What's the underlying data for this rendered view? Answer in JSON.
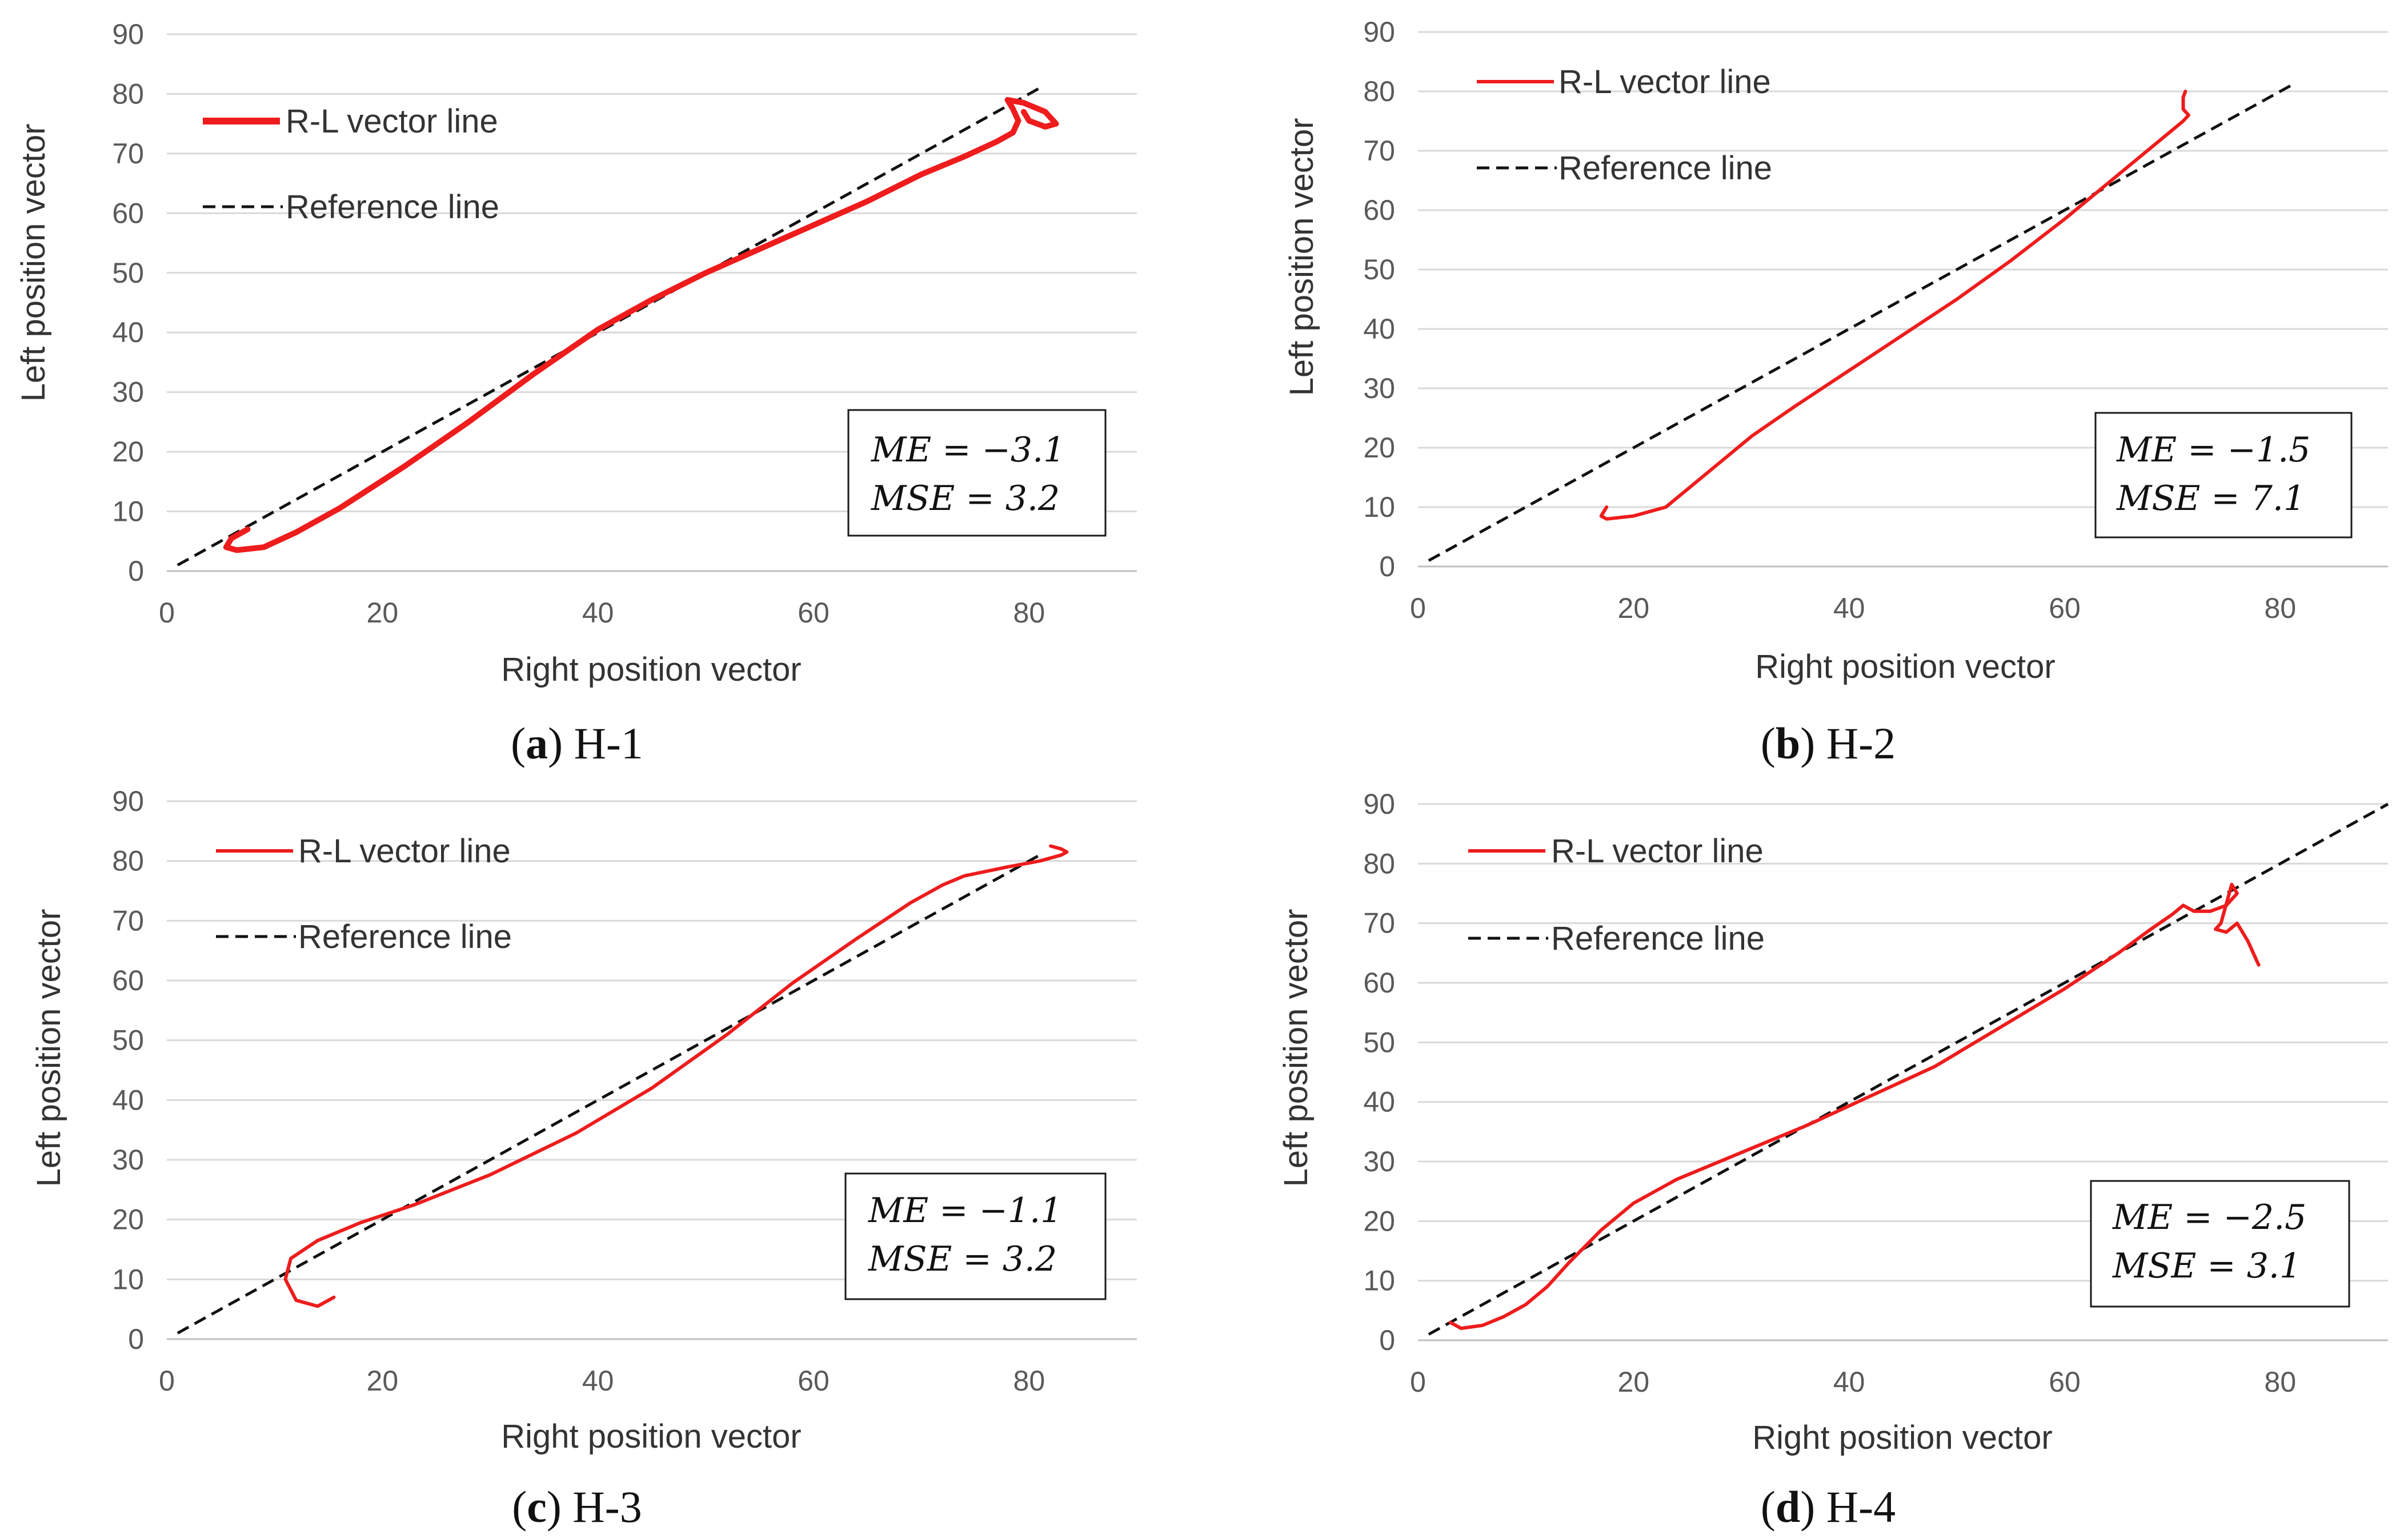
{
  "colors": {
    "curve": "#ee1c1c",
    "reference": "#111111",
    "grid": "#d9d9d9",
    "axis": "#bfbfbf"
  },
  "chart_data": [
    {
      "id": "H-1",
      "type": "line",
      "caption": {
        "letter": "a",
        "name": "H-1"
      },
      "xlabel": "Right position vector",
      "ylabel": "Left position vector",
      "xlim": [
        0,
        90
      ],
      "ylim": [
        0,
        90
      ],
      "xticks": [
        0,
        20,
        40,
        60,
        80
      ],
      "yticks": [
        0,
        10,
        20,
        30,
        40,
        50,
        60,
        70,
        80,
        90
      ],
      "legend": {
        "position": "top-left",
        "entries": [
          "R-L vector line",
          "Reference line"
        ]
      },
      "stats": {
        "me": "ME = −3.1",
        "mse": "MSE = 3.2"
      },
      "reference": {
        "x": [
          1,
          81
        ],
        "y": [
          1,
          81
        ]
      },
      "series": [
        {
          "name": "R-L vector line",
          "x": [
            7.5,
            6,
            5.5,
            6.5,
            9,
            12,
            16,
            22,
            28,
            34,
            40,
            45,
            50,
            55,
            60,
            65,
            70,
            74,
            77,
            78.5,
            79,
            78.5,
            78,
            79.5,
            81.5,
            82.5,
            81.5,
            80,
            79.5
          ],
          "y": [
            7,
            5.5,
            4,
            3.5,
            4,
            6.5,
            10.5,
            17.5,
            25,
            33,
            40.5,
            45.5,
            50,
            54,
            58,
            62,
            66.5,
            69.5,
            72,
            73.5,
            75.5,
            77.5,
            79,
            78.5,
            77,
            75,
            74.5,
            75.5,
            77
          ]
        }
      ]
    },
    {
      "id": "H-2",
      "type": "line",
      "caption": {
        "letter": "b",
        "name": "H-2"
      },
      "xlabel": "Right position vector",
      "ylabel": "Left position vector",
      "xlim": [
        0,
        90
      ],
      "ylim": [
        0,
        90
      ],
      "xticks": [
        0,
        20,
        40,
        60,
        80
      ],
      "yticks": [
        0,
        10,
        20,
        30,
        40,
        50,
        60,
        70,
        80,
        90
      ],
      "legend": {
        "position": "top-left",
        "entries": [
          "R-L vector line",
          "Reference line"
        ]
      },
      "stats": {
        "me": "ME = −1.5",
        "mse": "MSE = 7.1"
      },
      "reference": {
        "x": [
          1,
          81
        ],
        "y": [
          1,
          81
        ]
      },
      "series": [
        {
          "name": "R-L vector line",
          "x": [
            17.5,
            17,
            17.5,
            20,
            23,
            25,
            28,
            31,
            35,
            40,
            45,
            50,
            55,
            60,
            65,
            69,
            71,
            71.5,
            71,
            71,
            71.2
          ],
          "y": [
            10,
            8.5,
            8,
            8.5,
            10,
            13,
            17.5,
            22,
            27,
            33,
            39,
            45,
            51.5,
            58.5,
            66,
            72,
            75,
            76,
            77,
            79,
            80
          ]
        }
      ]
    },
    {
      "id": "H-3",
      "type": "line",
      "caption": {
        "letter": "c",
        "name": "H-3"
      },
      "xlabel": "Right position vector",
      "ylabel": "Left position vector",
      "xlim": [
        0,
        90
      ],
      "ylim": [
        0,
        90
      ],
      "xticks": [
        0,
        20,
        40,
        60,
        80
      ],
      "yticks": [
        0,
        10,
        20,
        30,
        40,
        50,
        60,
        70,
        80,
        90
      ],
      "legend": {
        "position": "top-left",
        "entries": [
          "R-L vector line",
          "Reference line"
        ]
      },
      "stats": {
        "me": "ME = −1.1",
        "mse": "MSE = 3.2"
      },
      "reference": {
        "x": [
          1,
          81
        ],
        "y": [
          1,
          81
        ]
      },
      "series": [
        {
          "name": "R-L vector line",
          "x": [
            15.5,
            14,
            12,
            11,
            11.5,
            14,
            18,
            23,
            30,
            38,
            45,
            52,
            58,
            64,
            69,
            72,
            74,
            78,
            81,
            83,
            83.5,
            83,
            82
          ],
          "y": [
            7,
            5.5,
            6.5,
            10,
            13.5,
            16.5,
            19.5,
            22.5,
            27.5,
            34.5,
            42,
            51,
            59.5,
            67,
            73,
            76,
            77.5,
            79,
            80,
            81,
            81.5,
            82,
            82.5
          ]
        }
      ]
    },
    {
      "id": "H-4",
      "type": "line",
      "caption": {
        "letter": "d",
        "name": "H-4"
      },
      "xlabel": "Right position vector",
      "ylabel": "Left position vector",
      "xlim": [
        0,
        90
      ],
      "ylim": [
        0,
        90
      ],
      "xticks": [
        0,
        20,
        40,
        60,
        80
      ],
      "yticks": [
        0,
        10,
        20,
        30,
        40,
        50,
        60,
        70,
        80,
        90
      ],
      "legend": {
        "position": "top-left",
        "entries": [
          "R-L vector line",
          "Reference line"
        ]
      },
      "stats": {
        "me": "ME = −2.5",
        "mse": "MSE = 3.1"
      },
      "reference": {
        "x": [
          1,
          90
        ],
        "y": [
          1,
          90
        ]
      },
      "series": [
        {
          "name": "R-L vector line",
          "x": [
            3,
            4,
            6,
            8,
            10,
            12,
            14,
            17,
            20,
            24,
            30,
            36,
            42,
            48,
            54,
            60,
            65,
            68,
            70,
            71,
            72,
            73.5,
            75,
            76,
            75.5,
            74.5,
            74,
            75,
            76,
            77,
            78
          ],
          "y": [
            3,
            2,
            2.5,
            4,
            6,
            9,
            13,
            18.5,
            23,
            27,
            31.5,
            36,
            41,
            46,
            52.5,
            59,
            65,
            69,
            71.5,
            73,
            72,
            72,
            73,
            75,
            76.5,
            70,
            69,
            68.5,
            70,
            67,
            63
          ]
        }
      ]
    }
  ]
}
